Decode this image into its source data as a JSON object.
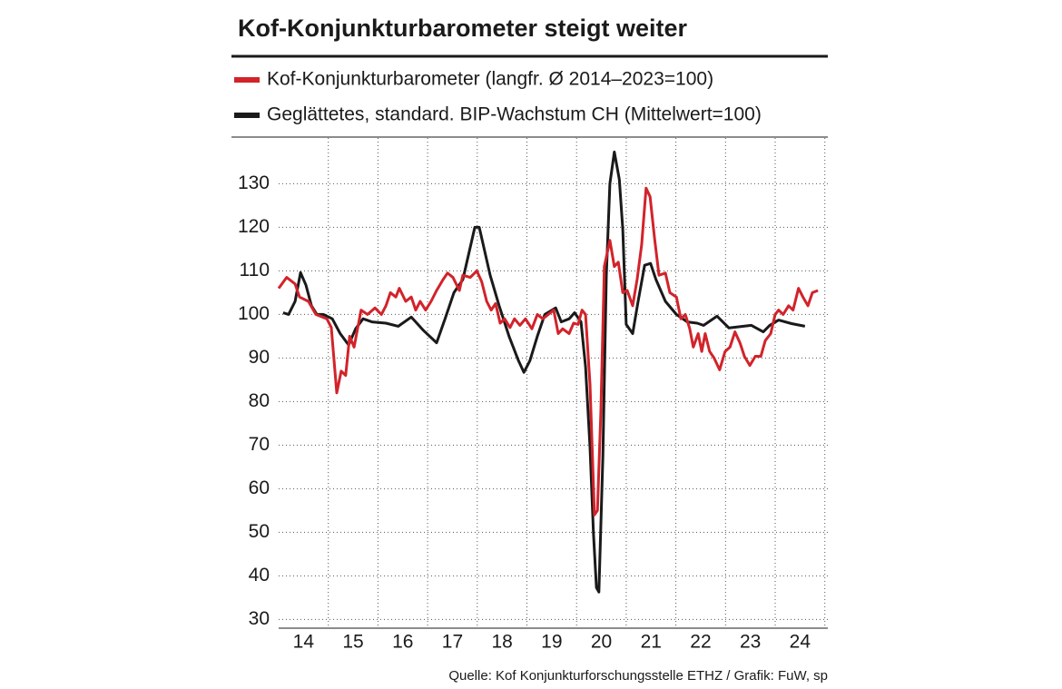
{
  "chart_data": {
    "type": "line",
    "title": "Kof-Konjunkturbarometer steigt weiter",
    "source": "Quelle: Kof Konjunkturforschungsstelle ETHZ / Grafik: FuW, sp",
    "xlim": [
      2014,
      2025.06
    ],
    "xticks": [
      {
        "value": 2014.5,
        "label": "14"
      },
      {
        "value": 2015.5,
        "label": "15"
      },
      {
        "value": 2016.5,
        "label": "16"
      },
      {
        "value": 2017.5,
        "label": "17"
      },
      {
        "value": 2018.5,
        "label": "18"
      },
      {
        "value": 2019.5,
        "label": "19"
      },
      {
        "value": 2020.5,
        "label": "20"
      },
      {
        "value": 2021.5,
        "label": "21"
      },
      {
        "value": 2022.5,
        "label": "22"
      },
      {
        "value": 2023.5,
        "label": "23"
      },
      {
        "value": 2024.5,
        "label": "24"
      }
    ],
    "xgrid": [
      2015,
      2016,
      2017,
      2018,
      2019,
      2020,
      2021,
      2022,
      2023,
      2024,
      2025
    ],
    "ylim": [
      28,
      140.5
    ],
    "yticks": [
      30,
      40,
      50,
      60,
      70,
      80,
      90,
      100,
      110,
      120,
      130
    ],
    "grid": true,
    "series": [
      {
        "name": "Kof-Konjunkturbarometer (langfr. Ø 2014–2023=100)",
        "color": "#d2232a",
        "x": [
          2014.0,
          2014.16,
          2014.33,
          2014.42,
          2014.6,
          2014.75,
          2014.97,
          2015.06,
          2015.17,
          2015.26,
          2015.35,
          2015.43,
          2015.52,
          2015.66,
          2015.79,
          2015.94,
          2016.07,
          2016.16,
          2016.25,
          2016.36,
          2016.43,
          2016.56,
          2016.67,
          2016.76,
          2016.85,
          2016.96,
          2017.07,
          2017.18,
          2017.31,
          2017.4,
          2017.51,
          2017.64,
          2017.71,
          2017.86,
          2017.99,
          2018.09,
          2018.19,
          2018.28,
          2018.37,
          2018.46,
          2018.55,
          2018.66,
          2018.75,
          2018.86,
          2018.97,
          2019.1,
          2019.21,
          2019.32,
          2019.43,
          2019.54,
          2019.63,
          2019.72,
          2019.85,
          2019.94,
          2020.03,
          2020.11,
          2020.18,
          2020.27,
          2020.36,
          2020.42,
          2020.49,
          2020.56,
          2020.67,
          2020.76,
          2020.84,
          2020.93,
          2021.02,
          2021.13,
          2021.22,
          2021.31,
          2021.4,
          2021.48,
          2021.57,
          2021.66,
          2021.79,
          2021.88,
          2022.01,
          2022.1,
          2022.19,
          2022.28,
          2022.35,
          2022.45,
          2022.52,
          2022.59,
          2022.68,
          2022.77,
          2022.88,
          2022.99,
          2023.09,
          2023.19,
          2023.29,
          2023.38,
          2023.49,
          2023.6,
          2023.71,
          2023.8,
          2023.91,
          2024.0,
          2024.07,
          2024.16,
          2024.27,
          2024.36,
          2024.47,
          2024.56,
          2024.66,
          2024.75,
          2024.86
        ],
        "values": [
          106,
          108.5,
          107,
          104,
          103,
          100,
          99,
          97,
          82,
          87,
          86,
          95,
          92.5,
          101,
          100,
          101.5,
          100,
          102,
          105,
          104,
          106,
          103,
          104,
          101,
          103,
          101,
          103,
          105.5,
          108,
          109.5,
          108.5,
          105.5,
          109,
          108.5,
          110,
          107.5,
          103,
          101,
          102.5,
          98,
          99,
          97,
          99,
          97.5,
          99,
          96.7,
          100,
          99,
          100,
          101,
          95.6,
          96.7,
          95.6,
          98,
          97.7,
          101,
          100,
          84,
          54,
          55,
          78,
          111,
          117,
          111,
          112,
          105,
          105.5,
          102,
          108,
          116,
          129,
          127,
          117.5,
          109,
          109.5,
          105,
          104,
          99,
          100,
          96.7,
          92.5,
          95.6,
          91.5,
          95.6,
          91.5,
          90,
          87.3,
          91.5,
          92.5,
          96,
          93.5,
          90.4,
          88.3,
          90.4,
          90.4,
          94,
          95.6,
          100,
          101,
          100,
          102,
          101,
          106,
          104,
          102,
          105,
          105.5
        ]
      },
      {
        "name": "Geglättetes, standard. BIP-Wachstum CH (Mittelwert=100)",
        "color": "#1a1a1a",
        "x": [
          2014.09,
          2014.2,
          2014.33,
          2014.44,
          2014.55,
          2014.66,
          2014.77,
          2014.9,
          2015.08,
          2015.24,
          2015.41,
          2015.55,
          2015.7,
          2015.88,
          2016.16,
          2016.41,
          2016.67,
          2016.92,
          2017.18,
          2017.35,
          2017.53,
          2017.71,
          2017.95,
          2018.04,
          2018.26,
          2018.44,
          2018.64,
          2018.83,
          2018.94,
          2019.06,
          2019.21,
          2019.36,
          2019.58,
          2019.69,
          2019.85,
          2019.96,
          2020.09,
          2020.18,
          2020.27,
          2020.34,
          2020.4,
          2020.45,
          2020.53,
          2020.6,
          2020.67,
          2020.76,
          2020.86,
          2020.93,
          2021.0,
          2021.13,
          2021.24,
          2021.37,
          2021.49,
          2021.6,
          2021.79,
          2022.01,
          2022.23,
          2022.43,
          2022.56,
          2022.83,
          2023.07,
          2023.52,
          2023.76,
          2023.89,
          2024.07,
          2024.33,
          2024.6
        ],
        "values": [
          100.4,
          100,
          103,
          109.6,
          106.7,
          102,
          100,
          100,
          99,
          95.6,
          93,
          96.7,
          99,
          98.3,
          98,
          97.3,
          99.4,
          96.3,
          93.5,
          99,
          105,
          108,
          120,
          120,
          109,
          102,
          95,
          89.4,
          86.7,
          89.4,
          95,
          100,
          101.5,
          98.3,
          99,
          100.4,
          98.3,
          88,
          69.6,
          49.8,
          37.3,
          36.3,
          67.5,
          109,
          130,
          137.3,
          131,
          119.6,
          97.7,
          95.6,
          103,
          111.3,
          111.7,
          108,
          103,
          100,
          98.3,
          98,
          97.5,
          99.6,
          96.9,
          97.5,
          96,
          97.5,
          98.7,
          97.9,
          97.3
        ]
      }
    ]
  }
}
